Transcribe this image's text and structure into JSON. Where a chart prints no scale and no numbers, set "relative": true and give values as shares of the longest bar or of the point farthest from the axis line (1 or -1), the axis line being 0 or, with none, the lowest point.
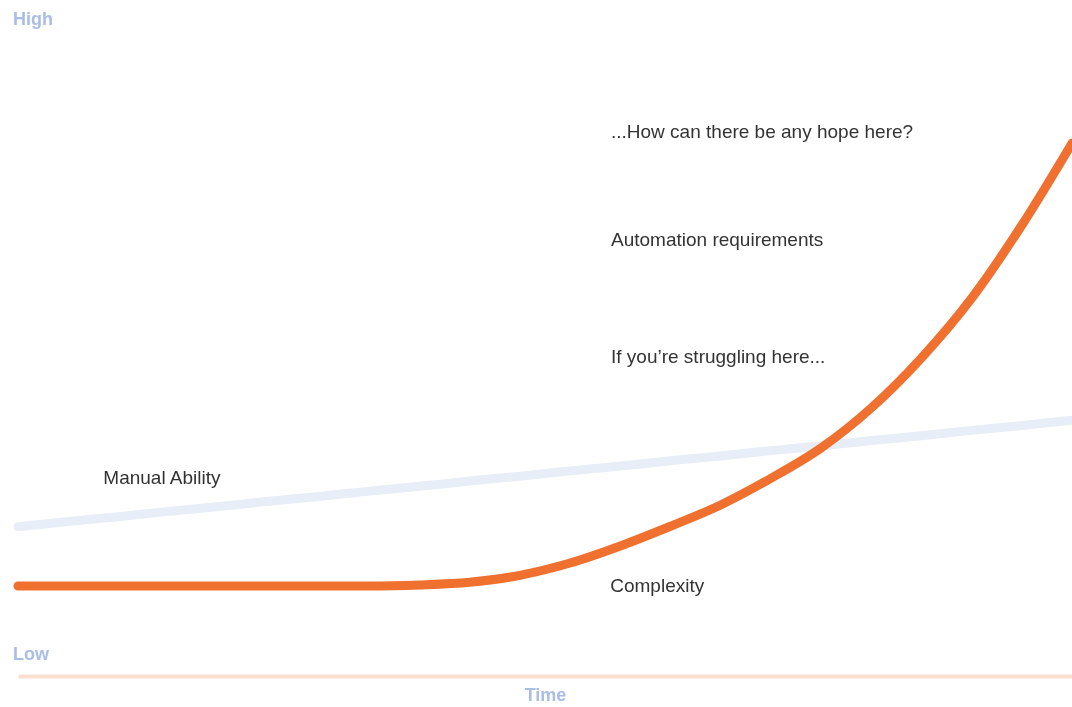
{
  "chart_data": {
    "type": "line",
    "relative": true,
    "xlabel": "Time",
    "categories": [
      null,
      null,
      null,
      null,
      null,
      null,
      null,
      null,
      null,
      null,
      null,
      null,
      null,
      null,
      null,
      null,
      null,
      null,
      null,
      null,
      null,
      null
    ],
    "series": [
      {
        "name": "Manual Ability",
        "color": "#e8eef7",
        "values": [
          0.28,
          0.29,
          0.299,
          0.309,
          0.318,
          0.328,
          0.337,
          0.347,
          0.356,
          0.366,
          0.375,
          0.385,
          0.394,
          0.404,
          0.413,
          0.423,
          0.432,
          0.442,
          0.451,
          0.461,
          0.47,
          0.48
        ]
      },
      {
        "name": "Complexity",
        "color": "#f07030",
        "values": [
          0.169,
          0.169,
          0.169,
          0.169,
          0.169,
          0.169,
          0.169,
          0.169,
          0.171,
          0.176,
          0.189,
          0.212,
          0.244,
          0.281,
          0.321,
          0.371,
          0.428,
          0.503,
          0.597,
          0.709,
          0.846,
          1
        ]
      }
    ],
    "annotations": [
      "High",
      "Low",
      "...How can there be any hope here?",
      "Automation requirements",
      "If you’re struggling here..."
    ]
  }
}
